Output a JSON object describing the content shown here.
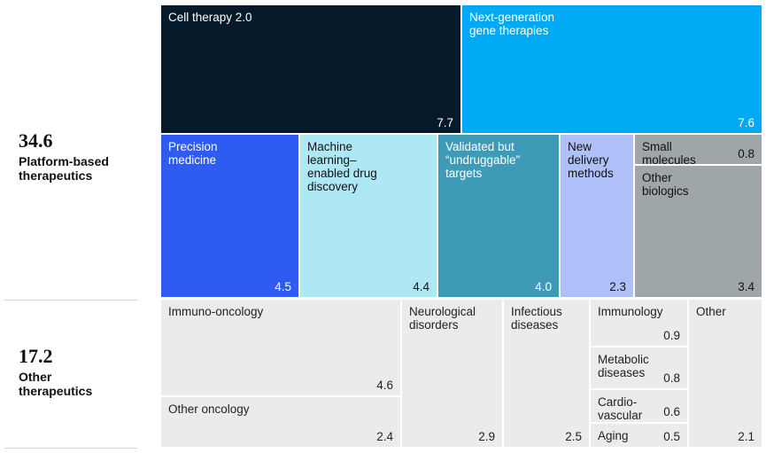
{
  "groups": [
    {
      "total": "34.6",
      "name": "Platform-based\ntherapeutics"
    },
    {
      "total": "17.2",
      "name": "Other\ntherapeutics"
    }
  ],
  "colors": {
    "cell": "#041a2b",
    "nextgen": "#00a9f4",
    "precision": "#2e5cf2",
    "ml": "#aee8f4",
    "undruggable": "#3d9bb8",
    "delivery": "#afc0f8",
    "small": "#9ea6aa",
    "other_platform": "#ebebeb",
    "text_light": "#ffffff",
    "text_dark": "#111111"
  },
  "chart_data": {
    "type": "treemap",
    "groups": [
      {
        "name": "Platform-based therapeutics",
        "total": 34.6,
        "items": [
          {
            "label": "Cell therapy 2.0",
            "value": 7.7,
            "value_text": "7.7",
            "color": "#041a2b"
          },
          {
            "label": "Next-generation\ngene therapies",
            "value": 7.6,
            "value_text": "7.6",
            "color": "#00a9f4"
          },
          {
            "label": "Precision\nmedicine",
            "value": 4.5,
            "value_text": "4.5",
            "color": "#2e5cf2"
          },
          {
            "label": "Machine\nlearning–\nenabled drug\ndiscovery",
            "value": 4.4,
            "value_text": "4.4",
            "color": "#aee8f4"
          },
          {
            "label": "Validated but\n“undruggable”\ntargets",
            "value": 4.0,
            "value_text": "4.0",
            "color": "#3d9bb8"
          },
          {
            "label": "New\ndelivery\nmethods",
            "value": 2.3,
            "value_text": "2.3",
            "color": "#afc0f8"
          },
          {
            "label": "Small\nmolecules",
            "value": 0.8,
            "value_text": "0.8",
            "color": "#9ea6aa"
          },
          {
            "label": "Other\nbiologics",
            "value": 3.4,
            "value_text": "3.4",
            "color": "#9ea6aa"
          }
        ]
      },
      {
        "name": "Other therapeutics",
        "total": 17.2,
        "items": [
          {
            "label": "Immuno-oncology",
            "value": 4.6,
            "value_text": "4.6",
            "color": "#ebebeb"
          },
          {
            "label": "Other oncology",
            "value": 2.4,
            "value_text": "2.4",
            "color": "#ebebeb"
          },
          {
            "label": "Neurological\ndisorders",
            "value": 2.9,
            "value_text": "2.9",
            "color": "#ebebeb"
          },
          {
            "label": "Infectious\ndiseases",
            "value": 2.5,
            "value_text": "2.5",
            "color": "#ebebeb"
          },
          {
            "label": "Immunology",
            "value": 0.9,
            "value_text": "0.9",
            "color": "#ebebeb"
          },
          {
            "label": "Metabolic\ndiseases",
            "value": 0.8,
            "value_text": "0.8",
            "color": "#ebebeb"
          },
          {
            "label": "Cardio-\nvascular",
            "value": 0.6,
            "value_text": "0.6",
            "color": "#ebebeb"
          },
          {
            "label": "Aging",
            "value": 0.5,
            "value_text": "0.5",
            "color": "#ebebeb"
          },
          {
            "label": "Other",
            "value": 2.1,
            "value_text": "2.1",
            "color": "#ebebeb"
          }
        ]
      }
    ]
  }
}
